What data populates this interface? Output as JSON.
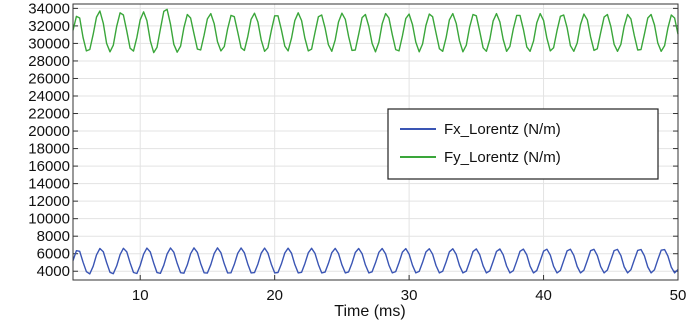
{
  "chart_data": {
    "type": "line",
    "title": "",
    "xlabel": "Time (ms)",
    "ylabel": "",
    "xlim": [
      5,
      50
    ],
    "ylim": [
      3000,
      34500
    ],
    "x_ticks": [
      10,
      20,
      30,
      40,
      50
    ],
    "y_ticks": [
      4000,
      6000,
      8000,
      10000,
      12000,
      14000,
      16000,
      18000,
      20000,
      22000,
      24000,
      26000,
      28000,
      30000,
      32000,
      34000
    ],
    "grid": true,
    "legend_position": "right",
    "series": [
      {
        "name": "Fx_Lorentz (N/m)",
        "color": "#3a55b4",
        "sampling": "oscillation sampled every 0.25 ms",
        "x": [
          5,
          5.25,
          5.5,
          5.75,
          6,
          6.25,
          6.5,
          6.75,
          7,
          7.25,
          7.5,
          7.75,
          8,
          8.25,
          8.5,
          8.75,
          9,
          9.25,
          9.5,
          9.75,
          10,
          10.25,
          10.5,
          10.75,
          11,
          11.25,
          11.5,
          11.75,
          12,
          12.25,
          12.5,
          12.75,
          13,
          13.25,
          13.5,
          13.75,
          14,
          14.25,
          14.5,
          14.75,
          15,
          15.25,
          15.5,
          15.75,
          16,
          16.25,
          16.5,
          16.75,
          17,
          17.25,
          17.5,
          17.75,
          18,
          18.25,
          18.5,
          18.75,
          19,
          19.25,
          19.5,
          19.75,
          20,
          20.25,
          20.5,
          20.75,
          21,
          21.25,
          21.5,
          21.75,
          22,
          22.25,
          22.5,
          22.75,
          23,
          23.25,
          23.5,
          23.75,
          24,
          24.25,
          24.5,
          24.75,
          25,
          25.25,
          25.5,
          25.75,
          26,
          26.25,
          26.5,
          26.75,
          27,
          27.25,
          27.5,
          27.75,
          28,
          28.25,
          28.5,
          28.75,
          29,
          29.25,
          29.5,
          29.75,
          30,
          30.25,
          30.5,
          30.75,
          31,
          31.25,
          31.5,
          31.75,
          32,
          32.25,
          32.5,
          32.75,
          33,
          33.25,
          33.5,
          33.75,
          34,
          34.25,
          34.5,
          34.75,
          35,
          35.25,
          35.5,
          35.75,
          36,
          36.25,
          36.5,
          36.75,
          37,
          37.25,
          37.5,
          37.75,
          38,
          38.25,
          38.5,
          38.75,
          39,
          39.25,
          39.5,
          39.75,
          40,
          40.25,
          40.5,
          40.75,
          41,
          41.25,
          41.5,
          41.75,
          42,
          42.25,
          42.5,
          42.75,
          43,
          43.25,
          43.5,
          43.75,
          44,
          44.25,
          44.5,
          44.75,
          45,
          45.25,
          45.5,
          45.75,
          46,
          46.25,
          46.5,
          46.75,
          47,
          47.25,
          47.5,
          47.75,
          48,
          48.25,
          48.5,
          48.75,
          49,
          49.25,
          49.5,
          49.75,
          50
        ],
        "y": [
          5200,
          6345,
          6280,
          5020,
          3950,
          3700,
          4580,
          5860,
          6600,
          6230,
          5000,
          3880,
          3720,
          4610,
          5900,
          6620,
          6210,
          4960,
          3860,
          3740,
          4650,
          5940,
          6640,
          6190,
          4930,
          3840,
          3760,
          4690,
          5970,
          6650,
          6170,
          4900,
          3830,
          3780,
          4720,
          6000,
          6660,
          6150,
          4870,
          3820,
          3800,
          4750,
          6020,
          6660,
          6120,
          4840,
          3810,
          3820,
          4780,
          6040,
          6650,
          6100,
          4820,
          3810,
          3840,
          4810,
          6060,
          6640,
          6080,
          4800,
          3810,
          3860,
          4840,
          6080,
          6630,
          6060,
          4780,
          3810,
          3880,
          4870,
          6100,
          6620,
          6040,
          4760,
          3810,
          3900,
          4900,
          6120,
          6610,
          6020,
          4740,
          3810,
          3920,
          4930,
          6140,
          6600,
          6000,
          4720,
          3810,
          3940,
          4960,
          6160,
          6590,
          5980,
          4700,
          3810,
          3960,
          4990,
          6180,
          6580,
          5960,
          4680,
          3810,
          3980,
          5020,
          6200,
          6570,
          5940,
          4660,
          3810,
          4000,
          5050,
          6220,
          6560,
          5920,
          4640,
          3810,
          4020,
          5080,
          6240,
          6550,
          5900,
          4620,
          3810,
          4040,
          5110,
          6260,
          6540,
          5880,
          4600,
          3810,
          4060,
          5140,
          6280,
          6530,
          5860,
          4580,
          3810,
          4080,
          5170,
          6300,
          6520,
          5840,
          4560,
          3810,
          4100,
          5200,
          6320,
          6510,
          5820,
          4540,
          3810,
          4120,
          5230,
          6340,
          6500,
          5800,
          4520,
          3810,
          4140,
          5260,
          6360,
          6490,
          5780,
          4500,
          3810,
          4160,
          5290,
          6380,
          6480,
          5760,
          4480,
          3810,
          4180,
          5320,
          6400,
          6470,
          5740,
          4460,
          3810,
          4200
        ]
      },
      {
        "name": "Fy_Lorentz (N/m)",
        "color": "#3aa63a",
        "sampling": "oscillation sampled every 0.25 ms",
        "x": [
          5,
          5.25,
          5.5,
          5.75,
          6,
          6.25,
          6.5,
          6.75,
          7,
          7.25,
          7.5,
          7.75,
          8,
          8.25,
          8.5,
          8.75,
          9,
          9.25,
          9.5,
          9.75,
          10,
          10.25,
          10.5,
          10.75,
          11,
          11.25,
          11.5,
          11.75,
          12,
          12.25,
          12.5,
          12.75,
          13,
          13.25,
          13.5,
          13.75,
          14,
          14.25,
          14.5,
          14.75,
          15,
          15.25,
          15.5,
          15.75,
          16,
          16.25,
          16.5,
          16.75,
          17,
          17.25,
          17.5,
          17.75,
          18,
          18.25,
          18.5,
          18.75,
          19,
          19.25,
          19.5,
          19.75,
          20,
          20.25,
          20.5,
          20.75,
          21,
          21.25,
          21.5,
          21.75,
          22,
          22.25,
          22.5,
          22.75,
          23,
          23.25,
          23.5,
          23.75,
          24,
          24.25,
          24.5,
          24.75,
          25,
          25.25,
          25.5,
          25.75,
          26,
          26.25,
          26.5,
          26.75,
          27,
          27.25,
          27.5,
          27.75,
          28,
          28.25,
          28.5,
          28.75,
          29,
          29.25,
          29.5,
          29.75,
          30,
          30.25,
          30.5,
          30.75,
          31,
          31.25,
          31.5,
          31.75,
          32,
          32.25,
          32.5,
          32.75,
          33,
          33.25,
          33.5,
          33.75,
          34,
          34.25,
          34.5,
          34.75,
          35,
          35.25,
          35.5,
          35.75,
          36,
          36.25,
          36.5,
          36.75,
          37,
          37.25,
          37.5,
          37.75,
          38,
          38.25,
          38.5,
          38.75,
          39,
          39.25,
          39.5,
          39.75,
          40,
          40.25,
          40.5,
          40.75,
          41,
          41.25,
          41.5,
          41.75,
          42,
          42.25,
          42.5,
          42.75,
          43,
          43.25,
          43.5,
          43.75,
          44,
          44.25,
          44.5,
          44.75,
          45,
          45.25,
          45.5,
          45.75,
          46,
          46.25,
          46.5,
          46.75,
          47,
          47.25,
          47.5,
          47.75,
          48,
          48.25,
          48.5,
          48.75,
          49,
          49.25,
          49.5,
          49.75,
          50
        ],
        "y": [
          31500,
          33090,
          32900,
          30650,
          29150,
          29310,
          31050,
          33000,
          33700,
          32300,
          30000,
          29050,
          29800,
          31950,
          33500,
          33250,
          31400,
          29450,
          29120,
          30700,
          32700,
          33600,
          32600,
          30300,
          28950,
          29550,
          31650,
          33650,
          33900,
          32200,
          29900,
          29000,
          29700,
          31800,
          33300,
          32900,
          31100,
          29350,
          29250,
          30950,
          32800,
          33400,
          32250,
          30200,
          29150,
          29650,
          31650,
          33200,
          33050,
          31300,
          29500,
          29200,
          30800,
          32750,
          33450,
          32450,
          30400,
          29100,
          29500,
          31450,
          33150,
          33150,
          31550,
          29700,
          29150,
          30600,
          32600,
          33500,
          32600,
          30600,
          29150,
          29350,
          31250,
          33050,
          33250,
          31750,
          29850,
          29100,
          30400,
          32450,
          33450,
          32750,
          30800,
          29200,
          29250,
          31050,
          32950,
          33300,
          31950,
          30000,
          29050,
          30150,
          32250,
          33400,
          32900,
          31000,
          29300,
          29150,
          30850,
          32850,
          33350,
          32150,
          30150,
          29050,
          29950,
          32050,
          33350,
          33050,
          31200,
          29400,
          29100,
          30650,
          32700,
          33400,
          32300,
          30300,
          29050,
          29800,
          31850,
          33300,
          33150,
          31400,
          29500,
          29100,
          30450,
          32550,
          33400,
          32450,
          30450,
          29100,
          29650,
          31650,
          33200,
          33200,
          31600,
          29600,
          29100,
          30250,
          32350,
          33400,
          32600,
          30600,
          29150,
          29500,
          31450,
          33100,
          33250,
          31800,
          29750,
          29100,
          30050,
          32150,
          33350,
          32700,
          30750,
          29200,
          29400,
          31250,
          33000,
          33300,
          31950,
          29900,
          29100,
          29900,
          31950,
          33300,
          32800,
          30900,
          29250,
          29300,
          31050,
          32900,
          33300,
          32100,
          30050,
          29100,
          29750,
          31750,
          33250,
          32900,
          31050
        ]
      }
    ]
  }
}
